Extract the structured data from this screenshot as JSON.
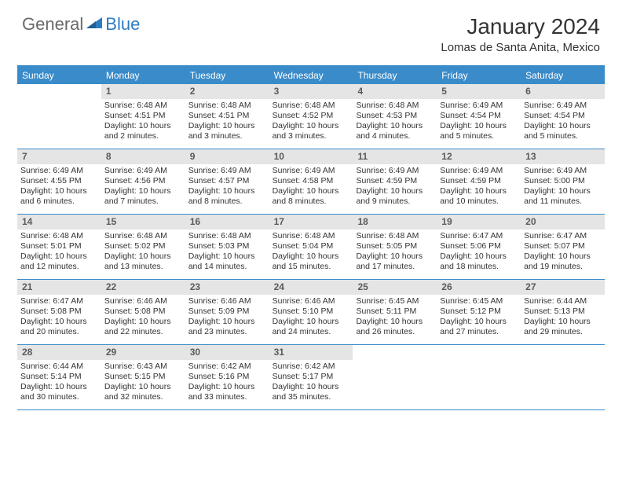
{
  "logo": {
    "text1": "General",
    "text2": "Blue"
  },
  "title": "January 2024",
  "location": "Lomas de Santa Anita, Mexico",
  "colors": {
    "header_bg": "#3a8bc9",
    "header_text": "#ffffff",
    "daynum_bg": "#e5e5e5",
    "daynum_text": "#5a5a5a",
    "logo_gray": "#6a6a6a",
    "logo_blue": "#2f7bbf"
  },
  "day_names": [
    "Sunday",
    "Monday",
    "Tuesday",
    "Wednesday",
    "Thursday",
    "Friday",
    "Saturday"
  ],
  "weeks": [
    [
      {},
      {
        "n": "1",
        "sr": "Sunrise: 6:48 AM",
        "ss": "Sunset: 4:51 PM",
        "d1": "Daylight: 10 hours",
        "d2": "and 2 minutes."
      },
      {
        "n": "2",
        "sr": "Sunrise: 6:48 AM",
        "ss": "Sunset: 4:51 PM",
        "d1": "Daylight: 10 hours",
        "d2": "and 3 minutes."
      },
      {
        "n": "3",
        "sr": "Sunrise: 6:48 AM",
        "ss": "Sunset: 4:52 PM",
        "d1": "Daylight: 10 hours",
        "d2": "and 3 minutes."
      },
      {
        "n": "4",
        "sr": "Sunrise: 6:48 AM",
        "ss": "Sunset: 4:53 PM",
        "d1": "Daylight: 10 hours",
        "d2": "and 4 minutes."
      },
      {
        "n": "5",
        "sr": "Sunrise: 6:49 AM",
        "ss": "Sunset: 4:54 PM",
        "d1": "Daylight: 10 hours",
        "d2": "and 5 minutes."
      },
      {
        "n": "6",
        "sr": "Sunrise: 6:49 AM",
        "ss": "Sunset: 4:54 PM",
        "d1": "Daylight: 10 hours",
        "d2": "and 5 minutes."
      }
    ],
    [
      {
        "n": "7",
        "sr": "Sunrise: 6:49 AM",
        "ss": "Sunset: 4:55 PM",
        "d1": "Daylight: 10 hours",
        "d2": "and 6 minutes."
      },
      {
        "n": "8",
        "sr": "Sunrise: 6:49 AM",
        "ss": "Sunset: 4:56 PM",
        "d1": "Daylight: 10 hours",
        "d2": "and 7 minutes."
      },
      {
        "n": "9",
        "sr": "Sunrise: 6:49 AM",
        "ss": "Sunset: 4:57 PM",
        "d1": "Daylight: 10 hours",
        "d2": "and 8 minutes."
      },
      {
        "n": "10",
        "sr": "Sunrise: 6:49 AM",
        "ss": "Sunset: 4:58 PM",
        "d1": "Daylight: 10 hours",
        "d2": "and 8 minutes."
      },
      {
        "n": "11",
        "sr": "Sunrise: 6:49 AM",
        "ss": "Sunset: 4:59 PM",
        "d1": "Daylight: 10 hours",
        "d2": "and 9 minutes."
      },
      {
        "n": "12",
        "sr": "Sunrise: 6:49 AM",
        "ss": "Sunset: 4:59 PM",
        "d1": "Daylight: 10 hours",
        "d2": "and 10 minutes."
      },
      {
        "n": "13",
        "sr": "Sunrise: 6:49 AM",
        "ss": "Sunset: 5:00 PM",
        "d1": "Daylight: 10 hours",
        "d2": "and 11 minutes."
      }
    ],
    [
      {
        "n": "14",
        "sr": "Sunrise: 6:48 AM",
        "ss": "Sunset: 5:01 PM",
        "d1": "Daylight: 10 hours",
        "d2": "and 12 minutes."
      },
      {
        "n": "15",
        "sr": "Sunrise: 6:48 AM",
        "ss": "Sunset: 5:02 PM",
        "d1": "Daylight: 10 hours",
        "d2": "and 13 minutes."
      },
      {
        "n": "16",
        "sr": "Sunrise: 6:48 AM",
        "ss": "Sunset: 5:03 PM",
        "d1": "Daylight: 10 hours",
        "d2": "and 14 minutes."
      },
      {
        "n": "17",
        "sr": "Sunrise: 6:48 AM",
        "ss": "Sunset: 5:04 PM",
        "d1": "Daylight: 10 hours",
        "d2": "and 15 minutes."
      },
      {
        "n": "18",
        "sr": "Sunrise: 6:48 AM",
        "ss": "Sunset: 5:05 PM",
        "d1": "Daylight: 10 hours",
        "d2": "and 17 minutes."
      },
      {
        "n": "19",
        "sr": "Sunrise: 6:47 AM",
        "ss": "Sunset: 5:06 PM",
        "d1": "Daylight: 10 hours",
        "d2": "and 18 minutes."
      },
      {
        "n": "20",
        "sr": "Sunrise: 6:47 AM",
        "ss": "Sunset: 5:07 PM",
        "d1": "Daylight: 10 hours",
        "d2": "and 19 minutes."
      }
    ],
    [
      {
        "n": "21",
        "sr": "Sunrise: 6:47 AM",
        "ss": "Sunset: 5:08 PM",
        "d1": "Daylight: 10 hours",
        "d2": "and 20 minutes."
      },
      {
        "n": "22",
        "sr": "Sunrise: 6:46 AM",
        "ss": "Sunset: 5:08 PM",
        "d1": "Daylight: 10 hours",
        "d2": "and 22 minutes."
      },
      {
        "n": "23",
        "sr": "Sunrise: 6:46 AM",
        "ss": "Sunset: 5:09 PM",
        "d1": "Daylight: 10 hours",
        "d2": "and 23 minutes."
      },
      {
        "n": "24",
        "sr": "Sunrise: 6:46 AM",
        "ss": "Sunset: 5:10 PM",
        "d1": "Daylight: 10 hours",
        "d2": "and 24 minutes."
      },
      {
        "n": "25",
        "sr": "Sunrise: 6:45 AM",
        "ss": "Sunset: 5:11 PM",
        "d1": "Daylight: 10 hours",
        "d2": "and 26 minutes."
      },
      {
        "n": "26",
        "sr": "Sunrise: 6:45 AM",
        "ss": "Sunset: 5:12 PM",
        "d1": "Daylight: 10 hours",
        "d2": "and 27 minutes."
      },
      {
        "n": "27",
        "sr": "Sunrise: 6:44 AM",
        "ss": "Sunset: 5:13 PM",
        "d1": "Daylight: 10 hours",
        "d2": "and 29 minutes."
      }
    ],
    [
      {
        "n": "28",
        "sr": "Sunrise: 6:44 AM",
        "ss": "Sunset: 5:14 PM",
        "d1": "Daylight: 10 hours",
        "d2": "and 30 minutes."
      },
      {
        "n": "29",
        "sr": "Sunrise: 6:43 AM",
        "ss": "Sunset: 5:15 PM",
        "d1": "Daylight: 10 hours",
        "d2": "and 32 minutes."
      },
      {
        "n": "30",
        "sr": "Sunrise: 6:42 AM",
        "ss": "Sunset: 5:16 PM",
        "d1": "Daylight: 10 hours",
        "d2": "and 33 minutes."
      },
      {
        "n": "31",
        "sr": "Sunrise: 6:42 AM",
        "ss": "Sunset: 5:17 PM",
        "d1": "Daylight: 10 hours",
        "d2": "and 35 minutes."
      },
      {},
      {},
      {}
    ]
  ]
}
